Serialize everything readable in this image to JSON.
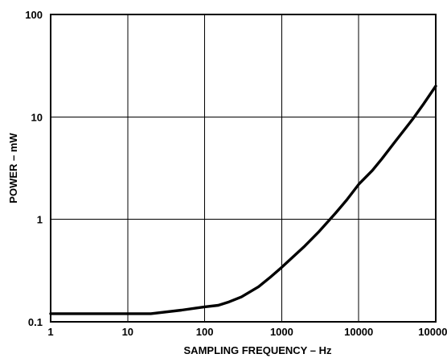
{
  "chart_data": {
    "type": "line",
    "xlabel": "SAMPLING FREQUENCY – Hz",
    "ylabel": "POWER – mW",
    "x_scale": "log",
    "y_scale": "log",
    "xlim": [
      1,
      100000
    ],
    "ylim": [
      0.1,
      100
    ],
    "grid": true,
    "x_ticks": [
      1,
      10,
      100,
      1000,
      10000,
      100000
    ],
    "x_tick_labels": [
      "1",
      "10",
      "100",
      "1000",
      "10000",
      "100000"
    ],
    "y_ticks": [
      0.1,
      1,
      10,
      100
    ],
    "y_tick_labels": [
      "0.1",
      "1",
      "10",
      "100"
    ],
    "series": [
      {
        "x": [
          1,
          2,
          5,
          10,
          20,
          50,
          100,
          150,
          200,
          300,
          500,
          700,
          1000,
          2000,
          3000,
          5000,
          7000,
          10000,
          15000,
          20000,
          30000,
          50000,
          70000,
          100000
        ],
        "y": [
          0.12,
          0.12,
          0.12,
          0.12,
          0.12,
          0.13,
          0.14,
          0.145,
          0.155,
          0.175,
          0.22,
          0.27,
          0.34,
          0.55,
          0.75,
          1.15,
          1.55,
          2.2,
          3.0,
          3.9,
          5.8,
          9.5,
          13.5,
          20
        ]
      }
    ]
  }
}
